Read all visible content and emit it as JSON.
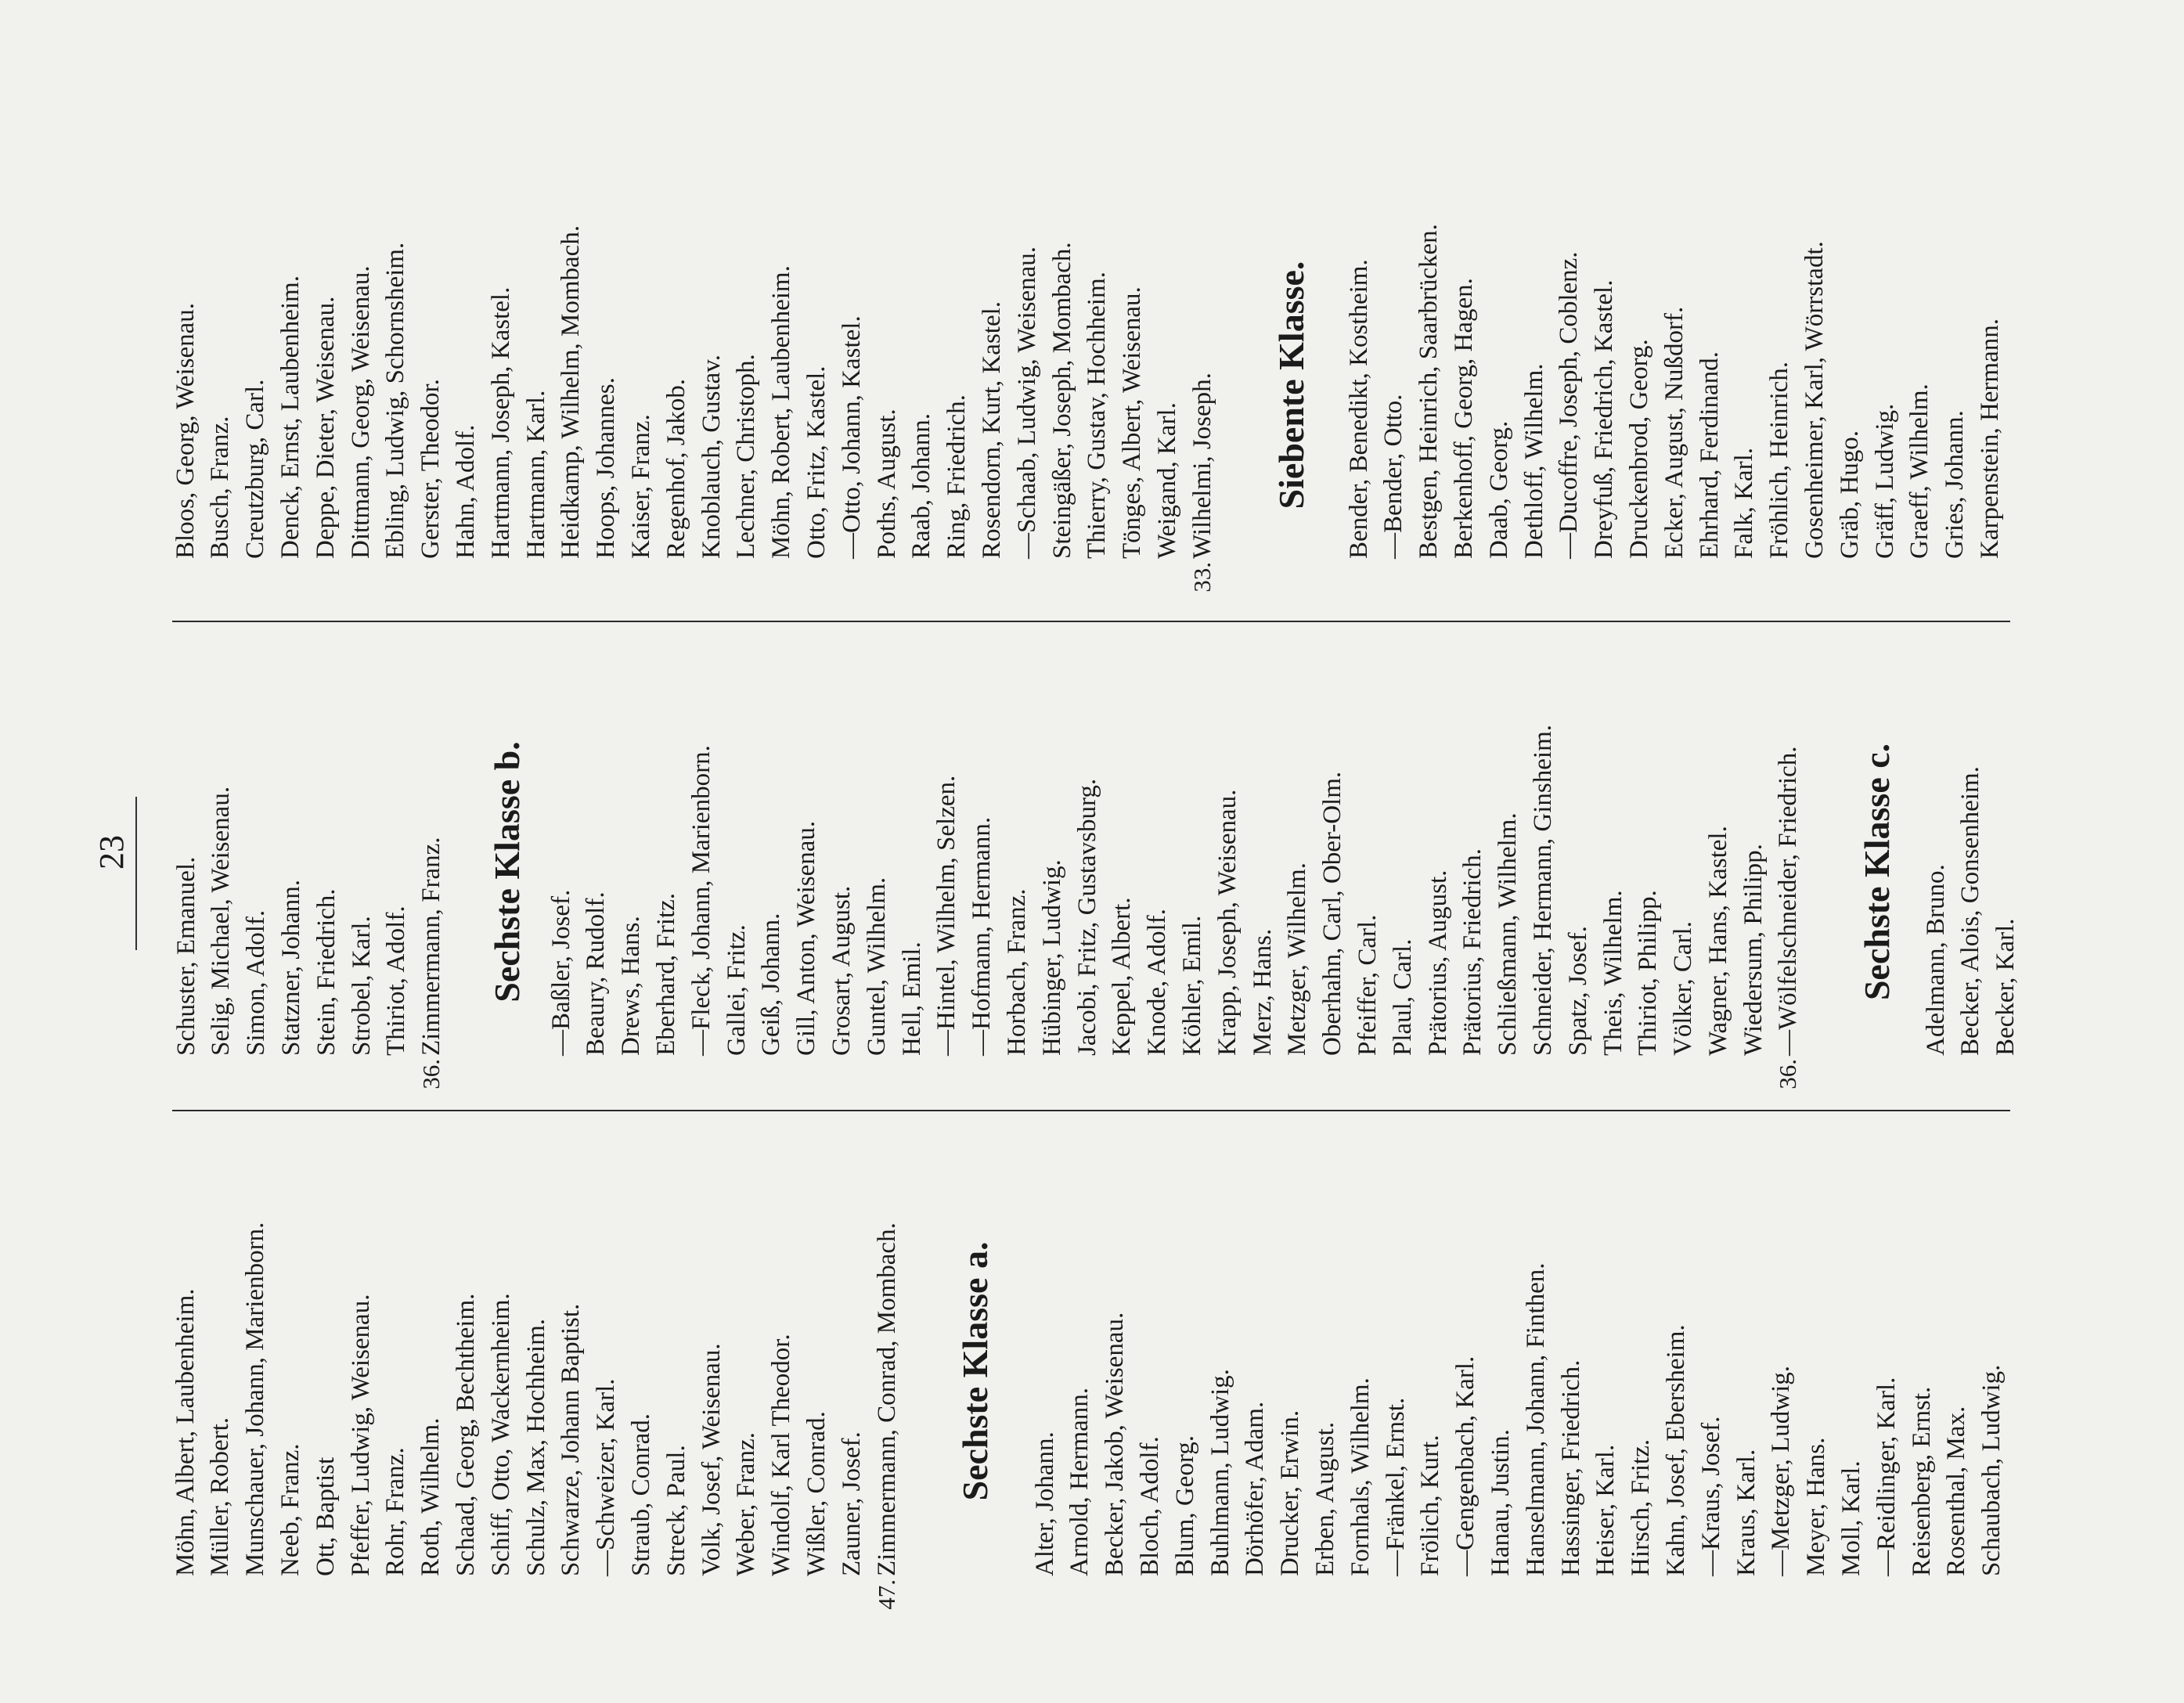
{
  "page_number": "23",
  "columns": [
    {
      "sections": [
        {
          "items": [
            {
              "text": "Möhn, Albert, Laubenheim."
            },
            {
              "text": "Müller, Robert."
            },
            {
              "text": "Munschauer, Johann, Marienborn."
            },
            {
              "text": "Neeb, Franz."
            },
            {
              "text": "Ott, Baptist"
            },
            {
              "text": "Pfeffer, Ludwig, Weisenau."
            },
            {
              "text": "Rohr, Franz."
            },
            {
              "text": "Roth, Wilhelm."
            },
            {
              "text": "Schaad, Georg, Bechtheim."
            },
            {
              "text": "Schiff, Otto, Wackernheim."
            },
            {
              "text": "Schulz, Max, Hochheim."
            },
            {
              "text": "Schwarze, Johann Baptist."
            },
            {
              "text": "—Schweizer, Karl."
            },
            {
              "text": "Straub, Conrad."
            },
            {
              "text": "Streck, Paul."
            },
            {
              "text": "Volk, Josef, Weisenau."
            },
            {
              "text": "Weber, Franz."
            },
            {
              "text": "Windolf, Karl Theodor."
            },
            {
              "text": "Wißler, Conrad."
            },
            {
              "text": "Zauner, Josef."
            },
            {
              "num": "47.",
              "text": "Zimmermann, Conrad, Mombach."
            }
          ]
        },
        {
          "heading": "Sechste Klasse a.",
          "items": [
            {
              "text": "Alter, Johann."
            },
            {
              "text": "Arnold, Hermann."
            },
            {
              "text": "Becker, Jakob, Weisenau."
            },
            {
              "text": "Bloch, Adolf."
            },
            {
              "text": "Blum, Georg."
            },
            {
              "text": "Buhlmann, Ludwig."
            },
            {
              "text": "Dörhöfer, Adam."
            },
            {
              "text": "Drucker, Erwin."
            },
            {
              "text": "Erben, August."
            },
            {
              "text": "Fornhals, Wilhelm."
            },
            {
              "text": "—Fränkel, Ernst."
            },
            {
              "text": "Frölich, Kurt."
            },
            {
              "text": "—Gengenbach, Karl."
            },
            {
              "text": "Hanau, Justin."
            },
            {
              "text": "Hanselmann, Johann, Finthen."
            },
            {
              "text": "Hassinger, Friedrich."
            },
            {
              "text": "Heiser, Karl."
            },
            {
              "text": "Hirsch, Fritz."
            },
            {
              "text": "Kahn, Josef, Ebersheim."
            },
            {
              "text": "—Kraus, Josef."
            },
            {
              "text": "Kraus, Karl."
            },
            {
              "text": "—Metzger, Ludwig."
            },
            {
              "text": "Meyer, Hans."
            },
            {
              "text": "Moll, Karl."
            },
            {
              "text": "—Reidlinger, Karl."
            },
            {
              "text": "Reisenberg, Ernst."
            },
            {
              "text": "Rosenthal, Max."
            },
            {
              "text": "Schaubach, Ludwig."
            }
          ]
        }
      ]
    },
    {
      "sections": [
        {
          "items": [
            {
              "text": "Schuster, Emanuel."
            },
            {
              "text": "Selig, Michael, Weisenau."
            },
            {
              "text": "Simon, Adolf."
            },
            {
              "text": "Statzner, Johann."
            },
            {
              "text": "Stein, Friedrich."
            },
            {
              "text": "Strobel, Karl."
            },
            {
              "text": "Thiriot, Adolf."
            },
            {
              "num": "36.",
              "text": "Zimmermann, Franz."
            }
          ]
        },
        {
          "heading": "Sechste Klasse b.",
          "items": [
            {
              "text": "—Baßler, Josef."
            },
            {
              "text": "Beaury, Rudolf."
            },
            {
              "text": "Drews, Hans."
            },
            {
              "text": "Eberhard, Fritz."
            },
            {
              "text": "—Fleck, Johann, Marienborn."
            },
            {
              "text": "Gallei, Fritz."
            },
            {
              "text": "Geiß, Johann."
            },
            {
              "text": "Gill, Anton, Weisenau."
            },
            {
              "text": "Grosart, August."
            },
            {
              "text": "Guntel, Wilhelm."
            },
            {
              "text": "Hell, Emil."
            },
            {
              "text": "—Hintel, Wilhelm, Selzen."
            },
            {
              "text": "—Hofmann, Hermann."
            },
            {
              "text": "Horbach, Franz."
            },
            {
              "text": "Hübinger, Ludwig."
            },
            {
              "text": "Jacobi, Fritz, Gustavsburg."
            },
            {
              "text": "Keppel, Albert."
            },
            {
              "text": "Knode, Adolf."
            },
            {
              "text": "Köhler, Emil."
            },
            {
              "text": "Krapp, Joseph, Weisenau."
            },
            {
              "text": "Merz, Hans."
            },
            {
              "text": "Metzger, Wilhelm."
            },
            {
              "text": "Oberhahn, Carl, Ober-Olm."
            },
            {
              "text": "Pfeiffer, Carl."
            },
            {
              "text": "Plaul, Carl."
            },
            {
              "text": "Prätorius, August."
            },
            {
              "text": "Prätorius, Friedrich."
            },
            {
              "text": "Schließmann, Wilhelm."
            },
            {
              "text": "Schneider, Hermann, Ginsheim."
            },
            {
              "text": "Spatz, Josef."
            },
            {
              "text": "Theis, Wilhelm."
            },
            {
              "text": "Thiriot, Philipp."
            },
            {
              "text": "Völker, Carl."
            },
            {
              "text": "Wagner, Hans, Kastel."
            },
            {
              "text": "Wiedersum, Philipp."
            },
            {
              "num": "36.",
              "text": "—Wölfelschneider, Friedrich."
            }
          ]
        },
        {
          "heading": "Sechste Klasse c.",
          "items": [
            {
              "text": "Adelmann, Bruno."
            },
            {
              "text": "Becker, Alois, Gonsenheim."
            },
            {
              "text": "Becker, Karl."
            }
          ]
        }
      ]
    },
    {
      "sections": [
        {
          "items": [
            {
              "text": "Bloos, Georg, Weisenau."
            },
            {
              "text": "Busch, Franz."
            },
            {
              "text": "Creutzburg, Carl."
            },
            {
              "text": "Denck, Ernst, Laubenheim."
            },
            {
              "text": "Deppe, Dieter, Weisenau."
            },
            {
              "text": "Dittmann, Georg, Weisenau."
            },
            {
              "text": "Ebling, Ludwig, Schornsheim."
            },
            {
              "text": "Gerster, Theodor."
            },
            {
              "text": "Hahn, Adolf."
            },
            {
              "text": "Hartmann, Joseph, Kastel."
            },
            {
              "text": "Hartmann, Karl."
            },
            {
              "text": "Heidkamp, Wilhelm, Mombach."
            },
            {
              "text": "Hoops, Johannes."
            },
            {
              "text": "Kaiser, Franz."
            },
            {
              "text": "Regenhof, Jakob."
            },
            {
              "text": "Knoblauch, Gustav."
            },
            {
              "text": "Lechner, Christoph."
            },
            {
              "text": "Möhn, Robert, Laubenheim."
            },
            {
              "text": "Otto, Fritz, Kastel."
            },
            {
              "text": "—Otto, Johann, Kastel."
            },
            {
              "text": "Poths, August."
            },
            {
              "text": "Raab, Johann."
            },
            {
              "text": "Ring, Friedrich."
            },
            {
              "text": "Rosendorn, Kurt, Kastel."
            },
            {
              "text": "—Schaab, Ludwig, Weisenau."
            },
            {
              "text": "Steingäßer, Joseph, Mombach."
            },
            {
              "text": "Thierry, Gustav, Hochheim."
            },
            {
              "text": "Tönges, Albert, Weisenau."
            },
            {
              "text": "Weigand, Karl."
            },
            {
              "num": "33.",
              "text": "Wilhelmi, Joseph."
            }
          ]
        },
        {
          "heading": "Siebente Klasse.",
          "items": [
            {
              "text": "Bender, Benedikt, Kostheim."
            },
            {
              "text": "—Bender, Otto."
            },
            {
              "text": "Bestgen, Heinrich, Saarbrücken."
            },
            {
              "text": "Berkenhoff, Georg, Hagen."
            },
            {
              "text": "Daab, Georg."
            },
            {
              "text": "Dethloff, Wilhelm."
            },
            {
              "text": "—Ducoffre, Joseph, Coblenz."
            },
            {
              "text": "Dreyfuß, Friedrich, Kastel."
            },
            {
              "text": "Druckenbrod, Georg."
            },
            {
              "text": "Ecker, August, Nußdorf."
            },
            {
              "text": "Ehrhard, Ferdinand."
            },
            {
              "text": "Falk, Karl."
            },
            {
              "text": "Fröhlich, Heinrich."
            },
            {
              "text": "Gosenheimer, Karl, Wörrstadt."
            },
            {
              "text": "Gräb, Hugo."
            },
            {
              "text": "Gräff, Ludwig."
            },
            {
              "text": "Graeff, Wilhelm."
            },
            {
              "text": "Gries, Johann."
            },
            {
              "text": "Karpenstein, Hermann."
            }
          ]
        }
      ]
    }
  ]
}
